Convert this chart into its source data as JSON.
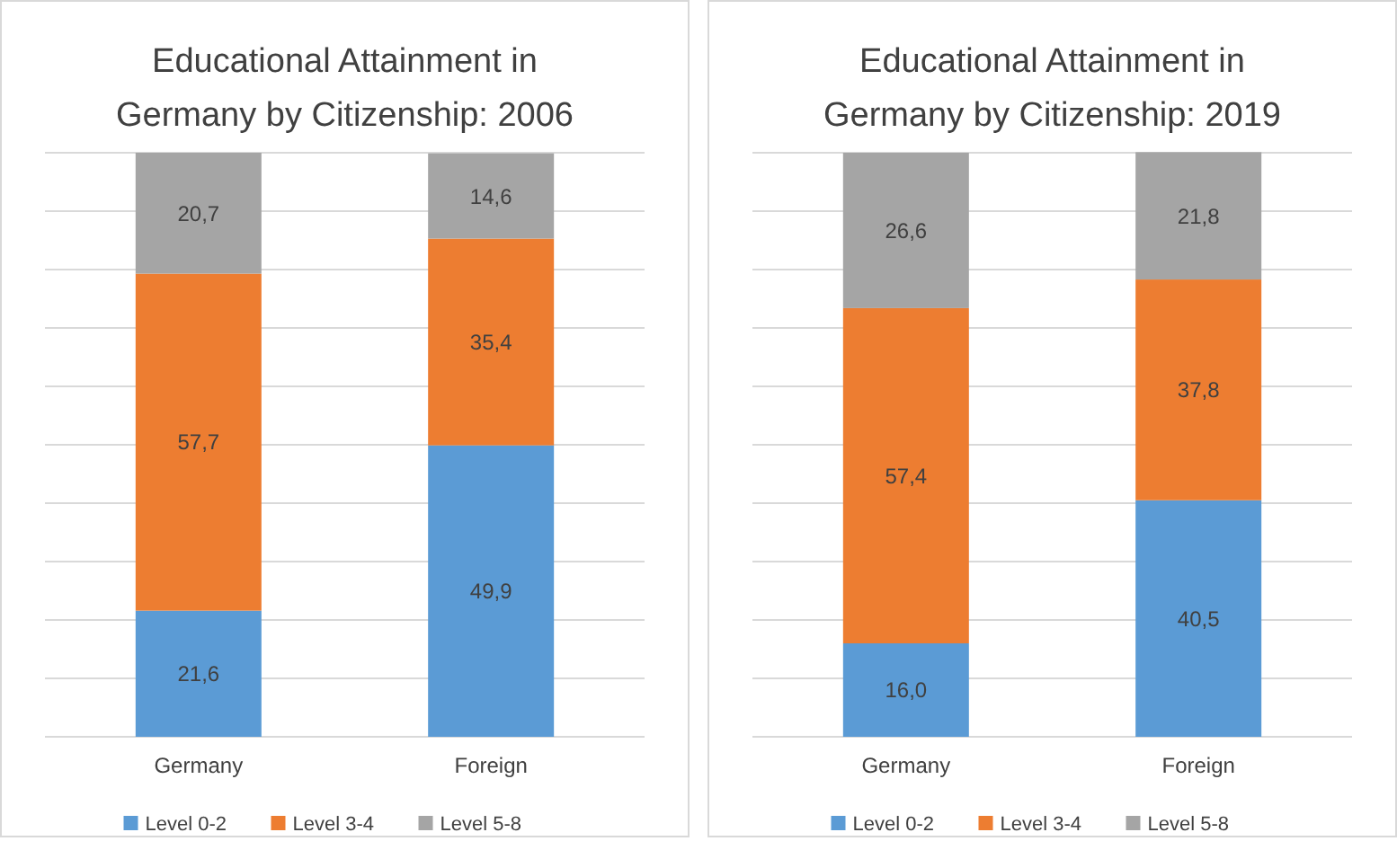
{
  "chart_data": [
    {
      "type": "bar",
      "title": "Educational Attainment in Germany by Citizenship: 2006",
      "categories": [
        "Germany",
        "Foreign"
      ],
      "stacked": true,
      "ylim": [
        0,
        100
      ],
      "yticks": [
        {
          "value": 0,
          "label": null
        },
        {
          "value": 10,
          "label": null
        },
        {
          "value": 20,
          "label": null
        },
        {
          "value": 30,
          "label": null
        },
        {
          "value": 40,
          "label": null
        },
        {
          "value": 50,
          "label": null
        },
        {
          "value": 60,
          "label": null
        },
        {
          "value": 70,
          "label": null
        },
        {
          "value": 80,
          "label": null
        },
        {
          "value": 90,
          "label": null
        },
        {
          "value": 100,
          "label": null
        }
      ],
      "tick_labels": "x",
      "grid": "y",
      "legend": "bottom",
      "series": [
        {
          "name": "Level 0-2",
          "color": "#5b9bd5",
          "values": [
            21.6,
            49.9
          ],
          "value_labels": [
            "21,6",
            "49,9"
          ]
        },
        {
          "name": "Level 3-4",
          "color": "#ed7d31",
          "values": [
            57.7,
            35.4
          ],
          "value_labels": [
            "57,7",
            "35,4"
          ]
        },
        {
          "name": "Level 5-8",
          "color": "#a5a5a5",
          "values": [
            20.7,
            14.6
          ],
          "value_labels": [
            "20,7",
            "14,6"
          ]
        }
      ]
    },
    {
      "type": "bar",
      "title": "Educational Attainment in Germany by Citizenship: 2019",
      "categories": [
        "Germany",
        "Foreign"
      ],
      "stacked": true,
      "ylim": [
        0,
        100
      ],
      "yticks": [
        {
          "value": 0,
          "label": null
        },
        {
          "value": 10,
          "label": null
        },
        {
          "value": 20,
          "label": null
        },
        {
          "value": 30,
          "label": null
        },
        {
          "value": 40,
          "label": null
        },
        {
          "value": 50,
          "label": null
        },
        {
          "value": 60,
          "label": null
        },
        {
          "value": 70,
          "label": null
        },
        {
          "value": 80,
          "label": null
        },
        {
          "value": 90,
          "label": null
        },
        {
          "value": 100,
          "label": null
        }
      ],
      "tick_labels": "x",
      "grid": "y",
      "legend": "bottom",
      "series": [
        {
          "name": "Level 0-2",
          "color": "#5b9bd5",
          "values": [
            16.0,
            40.5
          ],
          "value_labels": [
            "16,0",
            "40,5"
          ]
        },
        {
          "name": "Level 3-4",
          "color": "#ed7d31",
          "values": [
            57.4,
            37.8
          ],
          "value_labels": [
            "57,4",
            "37,8"
          ]
        },
        {
          "name": "Level 5-8",
          "color": "#a5a5a5",
          "values": [
            26.6,
            21.8
          ],
          "value_labels": [
            "26,6",
            "21,8"
          ]
        }
      ]
    }
  ]
}
